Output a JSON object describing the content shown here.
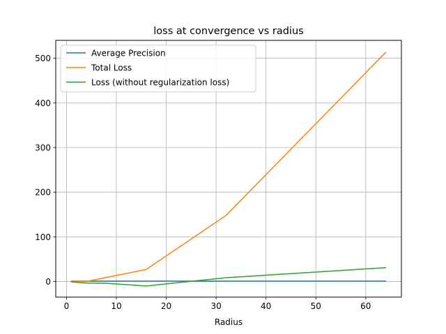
{
  "chart_data": {
    "type": "line",
    "title": "loss at convergence vs radius",
    "xlabel": "Radius",
    "ylabel": "",
    "xlim": [
      -2.15,
      67.15
    ],
    "ylim": [
      -35,
      540
    ],
    "xticks": [
      0,
      10,
      20,
      30,
      40,
      50,
      60
    ],
    "yticks": [
      0,
      100,
      200,
      300,
      400,
      500
    ],
    "grid": true,
    "legend_position": "upper-left",
    "x": [
      1,
      4,
      8,
      16,
      32,
      64
    ],
    "series": [
      {
        "name": "Average Precision",
        "color": "#1f77b4",
        "values": [
          0.8,
          0.8,
          0.8,
          0.8,
          0.8,
          0.8
        ]
      },
      {
        "name": "Total Loss",
        "color": "#ff7f0e",
        "values": [
          0.5,
          0,
          9,
          27,
          148,
          513
        ]
      },
      {
        "name": "Loss (without regularization loss)",
        "color": "#2ca02c",
        "values": [
          -1,
          -3.5,
          -4,
          -10,
          8.5,
          31
        ]
      }
    ]
  }
}
